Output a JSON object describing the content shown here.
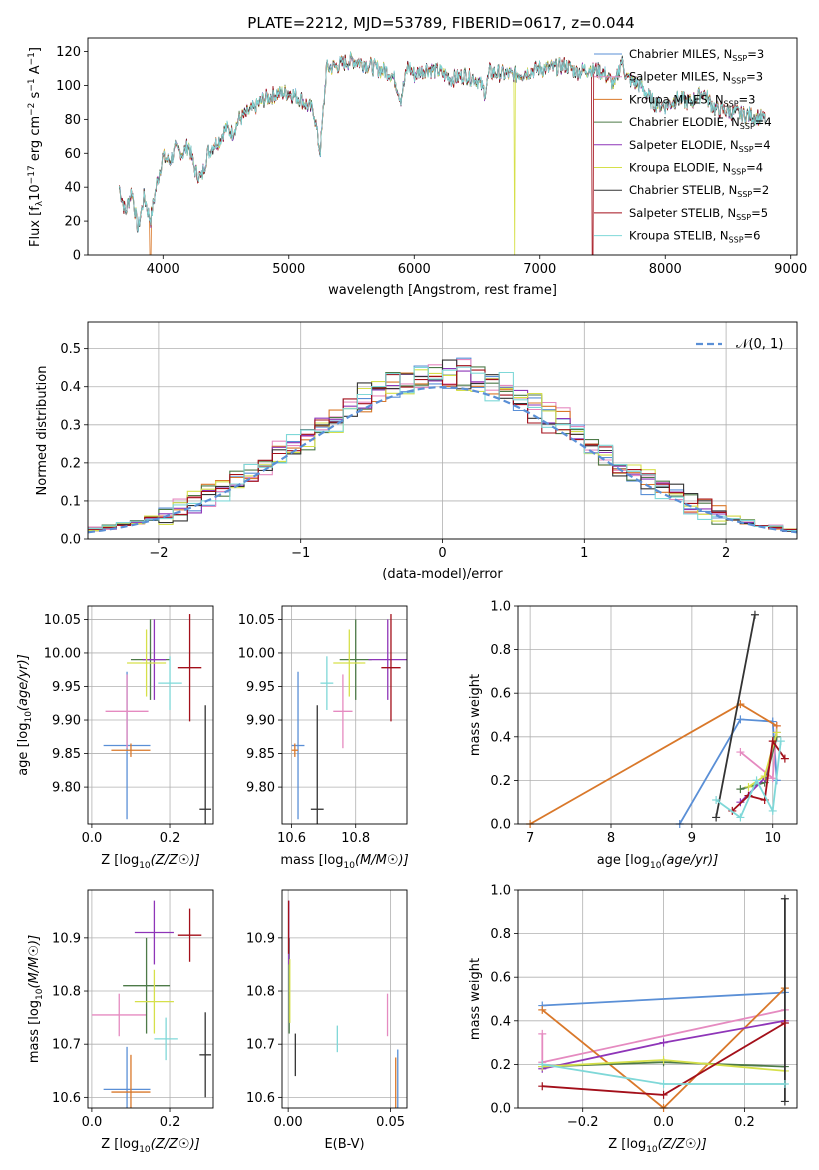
{
  "title": "PLATE=2212, MJD=53789, FIBERID=0617, z=0.044",
  "colors": {
    "chabrier_miles": "#5a8fd6",
    "salpeter_miles": "#e58ac0",
    "kroupa_miles": "#d9782a",
    "chabrier_elodie": "#4d7a48",
    "salpeter_elodie": "#8e35b8",
    "kroupa_elodie": "#d6e04a",
    "chabrier_stelib": "#333333",
    "salpeter_stelib": "#a30f1a",
    "kroupa_stelib": "#7fd8d8"
  },
  "chart_data": [
    {
      "type": "line",
      "id": "spectrum",
      "title": "PLATE=2212, MJD=53789, FIBERID=0617, z=0.044",
      "xlabel": "wavelength [Angstrom, rest frame]",
      "ylabel": "Flux [fλ10⁻¹⁷ erg cm⁻² s⁻¹ A⁻¹]",
      "xlim": [
        3400,
        9050
      ],
      "ylim": [
        0,
        128
      ],
      "xticks": [
        "4000",
        "5000",
        "6000",
        "7000",
        "8000",
        "9000"
      ],
      "yticks": [
        "0",
        "20",
        "40",
        "60",
        "80",
        "100",
        "120"
      ],
      "x": [
        3650,
        3700,
        3750,
        3800,
        3850,
        3900,
        3950,
        4000,
        4050,
        4100,
        4150,
        4200,
        4250,
        4300,
        4350,
        4400,
        4450,
        4500,
        4550,
        4600,
        4700,
        4800,
        4900,
        5000,
        5100,
        5150,
        5200,
        5250,
        5300,
        5400,
        5500,
        5600,
        5700,
        5800,
        5850,
        5893,
        5950,
        6000,
        6100,
        6200,
        6300,
        6400,
        6500,
        6563,
        6600,
        6700,
        6800,
        6900,
        7000,
        7100,
        7200,
        7300,
        7400,
        7500,
        7600,
        7650,
        7700,
        7800,
        7900,
        8000,
        8100,
        8200,
        8300,
        8400,
        8500,
        8600,
        8700,
        8800
      ],
      "y": [
        40,
        25,
        38,
        15,
        35,
        20,
        42,
        58,
        55,
        62,
        60,
        65,
        50,
        45,
        60,
        65,
        68,
        75,
        72,
        80,
        85,
        92,
        95,
        96,
        92,
        88,
        85,
        60,
        110,
        112,
        115,
        113,
        110,
        108,
        103,
        92,
        112,
        106,
        110,
        108,
        104,
        106,
        104,
        96,
        108,
        107,
        106,
        108,
        110,
        110,
        112,
        108,
        110,
        108,
        100,
        115,
        104,
        100,
        90,
        88,
        92,
        90,
        96,
        86,
        85,
        83,
        82,
        80
      ],
      "dropouts": [
        {
          "x": 3900,
          "series": "kroupa_miles"
        },
        {
          "x": 6800,
          "series": "kroupa_elodie"
        },
        {
          "x": 7420,
          "series": "salpeter_stelib"
        }
      ],
      "legend_position": "upper-right",
      "series": [
        {
          "key": "chabrier_miles",
          "label": "Chabrier MILES, N",
          "sub": "SSP",
          "suffix": "=3"
        },
        {
          "key": "salpeter_miles",
          "label": "Salpeter MILES, N",
          "sub": "SSP",
          "suffix": "=3"
        },
        {
          "key": "kroupa_miles",
          "label": "Kroupa MILES, N",
          "sub": "SSP",
          "suffix": "=3"
        },
        {
          "key": "chabrier_elodie",
          "label": "Chabrier ELODIE, N",
          "sub": "SSP",
          "suffix": "=4"
        },
        {
          "key": "salpeter_elodie",
          "label": "Salpeter ELODIE, N",
          "sub": "SSP",
          "suffix": "=4"
        },
        {
          "key": "kroupa_elodie",
          "label": "Kroupa ELODIE, N",
          "sub": "SSP",
          "suffix": "=4"
        },
        {
          "key": "chabrier_stelib",
          "label": "Chabrier STELIB, N",
          "sub": "SSP",
          "suffix": "=2"
        },
        {
          "key": "salpeter_stelib",
          "label": "Salpeter STELIB, N",
          "sub": "SSP",
          "suffix": "=5"
        },
        {
          "key": "kroupa_stelib",
          "label": "Kroupa STELIB, N",
          "sub": "SSP",
          "suffix": "=6"
        }
      ]
    },
    {
      "type": "histogram",
      "id": "residuals",
      "xlabel": "(data-model)/error",
      "ylabel": "Normed distribution",
      "xlim": [
        -2.5,
        2.5
      ],
      "ylim": [
        0,
        0.57
      ],
      "xticks": [
        "−2",
        "−1",
        "0",
        "1",
        "2"
      ],
      "yticks": [
        "0.0",
        "0.1",
        "0.2",
        "0.3",
        "0.4",
        "0.5"
      ],
      "legend_label": "𝒩(0, 1)",
      "normal_curve": {
        "mean": 0,
        "sigma": 1,
        "color": "#5a8fd6"
      },
      "bin_width": 0.1
    },
    {
      "type": "scatter",
      "id": "z_vs_age",
      "xlabel": "Z [log10(Z/Z☉)]",
      "ylabel": "age  [log10(age/yr)]",
      "xlim": [
        -0.01,
        0.31
      ],
      "ylim": [
        9.745,
        10.07
      ],
      "xticks": [
        "0.0",
        "0.2"
      ],
      "yticks": [
        "9.80",
        "9.85",
        "9.90",
        "9.95",
        "10.00",
        "10.05"
      ],
      "points": [
        {
          "series": "chabrier_miles",
          "x": 0.09,
          "y": 9.862,
          "xerr": 0.06,
          "yerr": 0.11
        },
        {
          "series": "salpeter_miles",
          "x": 0.09,
          "y": 9.913,
          "xerr": 0.055,
          "yerr": 0.055
        },
        {
          "series": "kroupa_miles",
          "x": 0.1,
          "y": 9.855,
          "xerr": 0.05,
          "yerr": 0.01
        },
        {
          "series": "chabrier_elodie",
          "x": 0.15,
          "y": 9.99,
          "xerr": 0.05,
          "yerr": 0.06
        },
        {
          "series": "salpeter_elodie",
          "x": 0.16,
          "y": 9.99,
          "xerr": 0.03,
          "yerr": 0.06
        },
        {
          "series": "kroupa_elodie",
          "x": 0.14,
          "y": 9.985,
          "xerr": 0.05,
          "yerr": 0.05
        },
        {
          "series": "chabrier_stelib",
          "x": 0.29,
          "y": 9.767,
          "xerr": 0.015,
          "yerr": 0.155
        },
        {
          "series": "salpeter_stelib",
          "x": 0.25,
          "y": 9.978,
          "xerr": 0.03,
          "yerr": 0.08
        },
        {
          "series": "kroupa_stelib",
          "x": 0.2,
          "y": 9.955,
          "xerr": 0.03,
          "yerr": 0.04
        }
      ]
    },
    {
      "type": "scatter",
      "id": "mass_vs_age",
      "xlabel": "mass [log10(M/M☉)]",
      "ylabel": "",
      "xlim": [
        10.57,
        10.96
      ],
      "ylim": [
        9.745,
        10.07
      ],
      "xticks": [
        "10.6",
        "10.8"
      ],
      "yticks": [
        "9.80",
        "9.85",
        "9.90",
        "9.95",
        "10.00",
        "10.05"
      ],
      "points": [
        {
          "series": "chabrier_miles",
          "x": 10.62,
          "y": 9.862,
          "xerr": 0.02,
          "yerr": 0.11
        },
        {
          "series": "salpeter_miles",
          "x": 10.76,
          "y": 9.913,
          "xerr": 0.03,
          "yerr": 0.055
        },
        {
          "series": "kroupa_miles",
          "x": 10.61,
          "y": 9.855,
          "xerr": 0.01,
          "yerr": 0.01
        },
        {
          "series": "chabrier_elodie",
          "x": 10.8,
          "y": 9.99,
          "xerr": 0.05,
          "yerr": 0.06
        },
        {
          "series": "salpeter_elodie",
          "x": 10.9,
          "y": 9.99,
          "xerr": 0.06,
          "yerr": 0.06
        },
        {
          "series": "kroupa_elodie",
          "x": 10.78,
          "y": 9.985,
          "xerr": 0.05,
          "yerr": 0.05
        },
        {
          "series": "chabrier_stelib",
          "x": 10.68,
          "y": 9.767,
          "xerr": 0.02,
          "yerr": 0.155
        },
        {
          "series": "salpeter_stelib",
          "x": 10.91,
          "y": 9.978,
          "xerr": 0.03,
          "yerr": 0.08
        },
        {
          "series": "kroupa_stelib",
          "x": 10.71,
          "y": 9.955,
          "xerr": 0.02,
          "yerr": 0.04
        }
      ]
    },
    {
      "type": "line",
      "id": "age_weights",
      "xlabel": "age  [log10(age/yr)]",
      "ylabel": "mass weight",
      "xlim": [
        6.85,
        10.3
      ],
      "ylim": [
        0,
        1.0
      ],
      "xticks": [
        "7",
        "8",
        "9",
        "10"
      ],
      "yticks": [
        "0.0",
        "0.2",
        "0.4",
        "0.6",
        "0.8",
        "1.0"
      ],
      "series": [
        {
          "key": "chabrier_miles",
          "x": [
            8.85,
            9.6,
            10.0,
            10.05
          ],
          "y": [
            0.0,
            0.48,
            0.47,
            0.2
          ]
        },
        {
          "key": "salpeter_miles",
          "x": [
            9.6,
            10.0,
            10.05
          ],
          "y": [
            0.33,
            0.21,
            0.45
          ]
        },
        {
          "key": "kroupa_miles",
          "x": [
            7.0,
            9.6,
            10.05
          ],
          "y": [
            0.0,
            0.55,
            0.45
          ]
        },
        {
          "key": "chabrier_elodie",
          "x": [
            9.6,
            9.9,
            10.05
          ],
          "y": [
            0.16,
            0.19,
            0.4
          ]
        },
        {
          "key": "salpeter_elodie",
          "x": [
            9.6,
            9.9,
            10.05
          ],
          "y": [
            0.1,
            0.21,
            0.42
          ]
        },
        {
          "key": "kroupa_elodie",
          "x": [
            9.7,
            9.9,
            10.05
          ],
          "y": [
            0.17,
            0.22,
            0.42
          ]
        },
        {
          "key": "chabrier_stelib",
          "x": [
            9.3,
            9.78
          ],
          "y": [
            0.03,
            0.96
          ]
        },
        {
          "key": "salpeter_stelib",
          "x": [
            9.5,
            9.7,
            9.9,
            10.0,
            10.15
          ],
          "y": [
            0.06,
            0.13,
            0.11,
            0.38,
            0.3
          ]
        },
        {
          "key": "kroupa_stelib",
          "x": [
            9.3,
            9.6,
            9.8,
            10.0,
            10.1
          ],
          "y": [
            0.11,
            0.03,
            0.2,
            0.06,
            0.38
          ]
        }
      ]
    },
    {
      "type": "scatter",
      "id": "z_vs_mass",
      "xlabel": "Z [log10(Z/Z☉)]",
      "ylabel": "mass [log10(M/M☉)]",
      "xlim": [
        -0.01,
        0.31
      ],
      "ylim": [
        10.58,
        10.99
      ],
      "xticks": [
        "0.0",
        "0.2"
      ],
      "yticks": [
        "10.6",
        "10.7",
        "10.8",
        "10.9"
      ],
      "points": [
        {
          "series": "chabrier_miles",
          "x": 0.09,
          "y": 10.615,
          "xerr": 0.06,
          "yerr": 0.08
        },
        {
          "series": "salpeter_miles",
          "x": 0.07,
          "y": 10.755,
          "xerr": 0.07,
          "yerr": 0.04
        },
        {
          "series": "kroupa_miles",
          "x": 0.1,
          "y": 10.61,
          "xerr": 0.05,
          "yerr": 0.07
        },
        {
          "series": "chabrier_elodie",
          "x": 0.14,
          "y": 10.81,
          "xerr": 0.06,
          "yerr": 0.09
        },
        {
          "series": "salpeter_elodie",
          "x": 0.16,
          "y": 10.91,
          "xerr": 0.05,
          "yerr": 0.06
        },
        {
          "series": "kroupa_elodie",
          "x": 0.16,
          "y": 10.78,
          "xerr": 0.05,
          "yerr": 0.06
        },
        {
          "series": "chabrier_stelib",
          "x": 0.29,
          "y": 10.68,
          "xerr": 0.015,
          "yerr": 0.08
        },
        {
          "series": "salpeter_stelib",
          "x": 0.25,
          "y": 10.905,
          "xerr": 0.03,
          "yerr": 0.05
        },
        {
          "series": "kroupa_stelib",
          "x": 0.19,
          "y": 10.71,
          "xerr": 0.03,
          "yerr": 0.04
        }
      ]
    },
    {
      "type": "scatter",
      "id": "ebv_vs_mass",
      "xlabel": "E(B-V)",
      "ylabel": "",
      "xlim": [
        -0.003,
        0.058
      ],
      "ylim": [
        10.58,
        10.99
      ],
      "xticks": [
        "0.00",
        "0.05"
      ],
      "yticks": [
        "10.6",
        "10.7",
        "10.8",
        "10.9"
      ],
      "points": [
        {
          "series": "chabrier_miles",
          "x": 0.0535,
          "y": 10.615,
          "yerr": 0.075
        },
        {
          "series": "salpeter_miles",
          "x": 0.0485,
          "y": 10.755,
          "yerr": 0.04
        },
        {
          "series": "kroupa_miles",
          "x": 0.0525,
          "y": 10.615,
          "yerr": 0.06
        },
        {
          "series": "chabrier_elodie",
          "x": 0.0005,
          "y": 10.81,
          "yerr": 0.09
        },
        {
          "series": "salpeter_elodie",
          "x": 0.0003,
          "y": 10.91,
          "yerr": 0.06
        },
        {
          "series": "kroupa_elodie",
          "x": 0.0008,
          "y": 10.8,
          "yerr": 0.06
        },
        {
          "series": "chabrier_stelib",
          "x": 0.0035,
          "y": 10.68,
          "yerr": 0.04
        },
        {
          "series": "salpeter_stelib",
          "x": 0.0002,
          "y": 10.92,
          "yerr": 0.05
        },
        {
          "series": "kroupa_stelib",
          "x": 0.024,
          "y": 10.71,
          "yerr": 0.025
        }
      ]
    },
    {
      "type": "line",
      "id": "z_weights",
      "xlabel": "Z [log10(Z/Z☉)]",
      "ylabel": "mass weight",
      "xlim": [
        -0.36,
        0.33
      ],
      "ylim": [
        0,
        1.0
      ],
      "xticks": [
        "−0.2",
        "0.0",
        "0.2"
      ],
      "yticks": [
        "0.0",
        "0.2",
        "0.4",
        "0.6",
        "0.8",
        "1.0"
      ],
      "series": [
        {
          "key": "chabrier_miles",
          "x": [
            -0.3,
            0.3
          ],
          "y": [
            0.47,
            0.53
          ]
        },
        {
          "key": "salpeter_miles",
          "x": [
            -0.3,
            -0.3,
            0.3
          ],
          "y": [
            0.34,
            0.21,
            0.45
          ]
        },
        {
          "key": "kroupa_miles",
          "x": [
            -0.3,
            0.0,
            0.3
          ],
          "y": [
            0.45,
            0.0,
            0.55
          ]
        },
        {
          "key": "chabrier_elodie",
          "x": [
            -0.3,
            0.0,
            0.3
          ],
          "y": [
            0.19,
            0.21,
            0.19
          ]
        },
        {
          "key": "salpeter_elodie",
          "x": [
            -0.3,
            0.0,
            0.3
          ],
          "y": [
            0.18,
            0.3,
            0.4
          ]
        },
        {
          "key": "kroupa_elodie",
          "x": [
            -0.3,
            0.0,
            0.3
          ],
          "y": [
            0.19,
            0.22,
            0.17
          ]
        },
        {
          "key": "chabrier_stelib",
          "x": [
            0.3,
            0.3
          ],
          "y": [
            0.03,
            0.96
          ]
        },
        {
          "key": "salpeter_stelib",
          "x": [
            -0.3,
            0.0,
            0.3
          ],
          "y": [
            0.1,
            0.06,
            0.39
          ]
        },
        {
          "key": "kroupa_stelib",
          "x": [
            -0.3,
            0.0,
            0.3
          ],
          "y": [
            0.2,
            0.11,
            0.11
          ]
        }
      ]
    }
  ]
}
